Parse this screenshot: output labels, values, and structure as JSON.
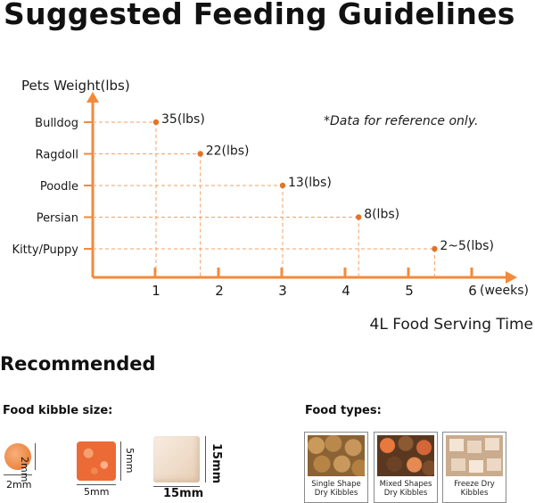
{
  "title": "Suggested Feeding Guidelines",
  "chart_data": {
    "type": "scatter",
    "ylabel": "Pets Weight(lbs)",
    "xlabel": "4L Food Serving Time",
    "x_unit": "(weeks)",
    "note": "*Data for reference only.",
    "x_ticks": [
      "1",
      "2",
      "3",
      "4",
      "5",
      "6"
    ],
    "xlim": [
      0,
      6
    ],
    "categories": [
      "Bulldog",
      "Ragdoll",
      "Poodle",
      "Persian",
      "Kitty/Puppy"
    ],
    "points": [
      {
        "category": "Bulldog",
        "x": 1.0,
        "label": "35(lbs)"
      },
      {
        "category": "Ragdoll",
        "x": 1.7,
        "label": "22(lbs)"
      },
      {
        "category": "Poodle",
        "x": 3.0,
        "label": "13(lbs)"
      },
      {
        "category": "Persian",
        "x": 4.2,
        "label": "8(lbs)"
      },
      {
        "category": "Kitty/Puppy",
        "x": 5.4,
        "label": "2~5(lbs)"
      }
    ],
    "colors": {
      "axis": "#f28a3a",
      "point": "#e0742a",
      "guide": "#f2a066"
    }
  },
  "recommended": {
    "title": "Recommended",
    "kibble_size_label": "Food kibble size:",
    "food_types_label": "Food types:",
    "sizes": [
      {
        "width": "2mm",
        "height": "2mm"
      },
      {
        "width": "5mm",
        "height": "5mm"
      },
      {
        "width": "15mm",
        "height": "15mm"
      }
    ],
    "types": [
      {
        "line1": "Single Shape",
        "line2": "Dry Kibbles"
      },
      {
        "line1": "Mixed Shapes",
        "line2": "Dry Kibbles"
      },
      {
        "line1": "Freeze Dry",
        "line2": "Kibbles"
      }
    ]
  }
}
